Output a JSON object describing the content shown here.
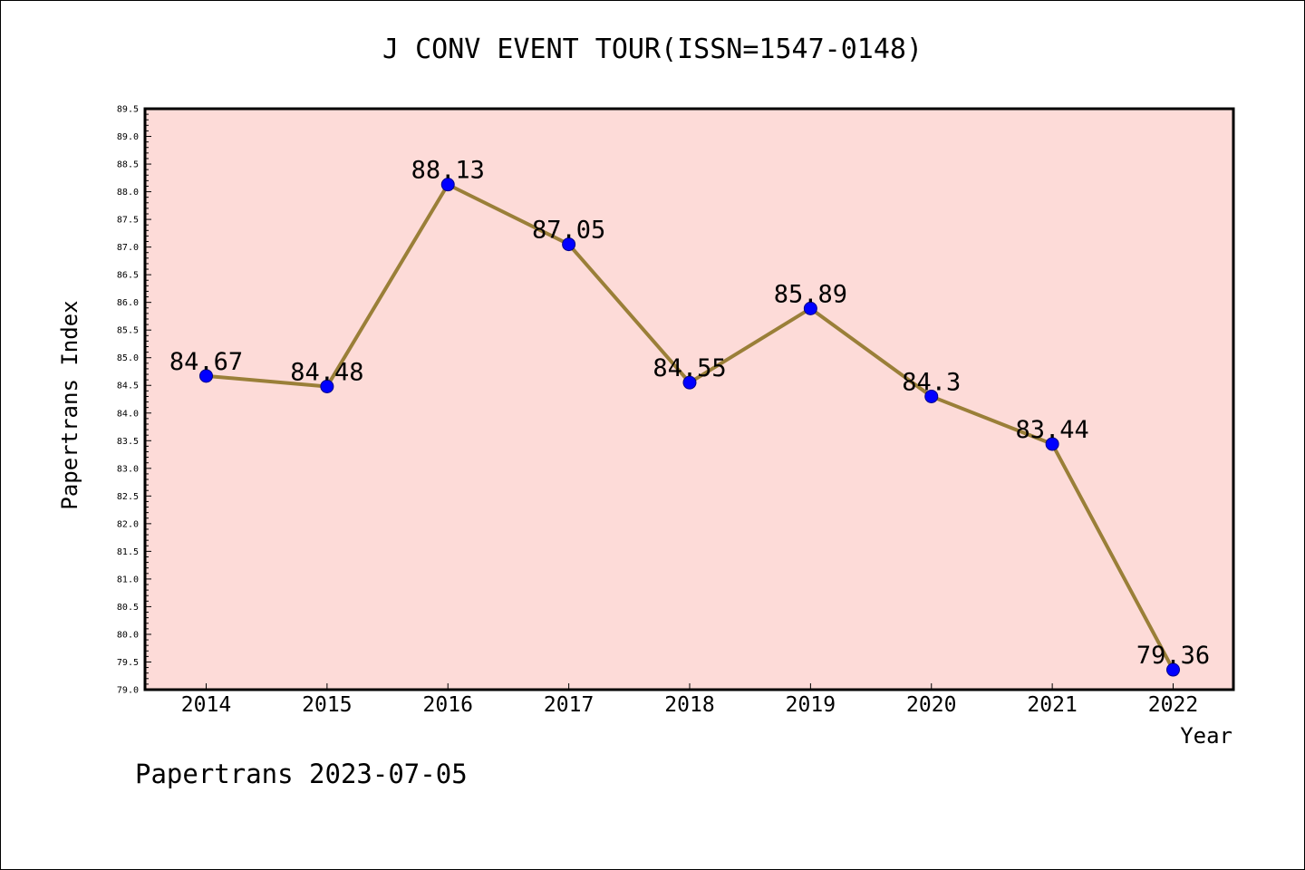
{
  "chart_data": {
    "type": "line",
    "title": "J CONV EVENT TOUR(ISSN=1547-0148)",
    "xlabel": "Year",
    "ylabel": "Papertrans Index",
    "categories": [
      "2014",
      "2015",
      "2016",
      "2017",
      "2018",
      "2019",
      "2020",
      "2021",
      "2022"
    ],
    "series": [
      {
        "values": [
          84.67,
          84.48,
          88.13,
          87.05,
          84.55,
          85.89,
          84.3,
          83.44,
          79.36
        ],
        "labels": [
          "84.67",
          "84.48",
          "88.13",
          "87.05",
          "84.55",
          "85.89",
          "84.3",
          "83.44",
          "79.36"
        ]
      }
    ],
    "ylim": [
      79.0,
      89.5
    ],
    "yticks": [
      "79.0",
      "79.5",
      "80.0",
      "80.5",
      "81.0",
      "81.5",
      "82.0",
      "82.5",
      "83.0",
      "83.5",
      "84.0",
      "84.5",
      "85.0",
      "85.5",
      "86.0",
      "86.5",
      "87.0",
      "87.5",
      "88.0",
      "88.5",
      "89.0",
      "89.5"
    ],
    "grid": false,
    "colors": {
      "plot_background": "#fddbd8",
      "line": "#9a7f38",
      "marker": "#0000ff"
    }
  },
  "footer": "Papertrans 2023-07-05"
}
